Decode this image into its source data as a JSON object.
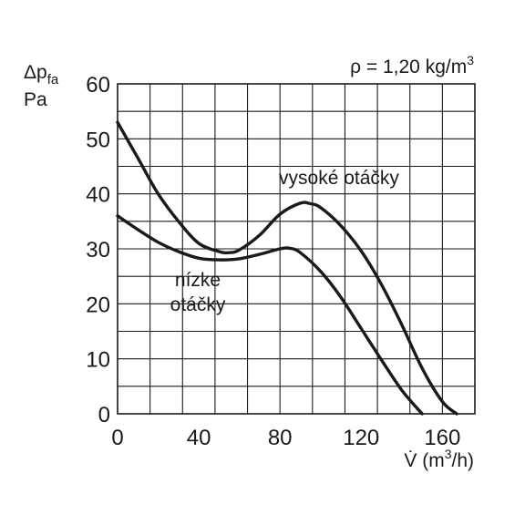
{
  "chart_data": {
    "type": "line",
    "ylabel_top": "Δp",
    "ylabel_sub": "fa",
    "ylabel_unit": "Pa",
    "xlabel_main": "V̇ (m",
    "xlabel_sup": "3",
    "xlabel_end": "/h)",
    "density_main": "ρ = 1,20 kg/m",
    "density_sup": "3",
    "xlim": [
      0,
      176
    ],
    "ylim": [
      0,
      60
    ],
    "x_ticks": [
      0,
      40,
      80,
      120,
      160
    ],
    "y_ticks": [
      0,
      10,
      20,
      30,
      40,
      50,
      60
    ],
    "x_tick_labels": [
      "0",
      "40",
      "80",
      "120",
      "160"
    ],
    "y_tick_labels": [
      "0",
      "10",
      "20",
      "30",
      "40",
      "50",
      "60"
    ],
    "x_grid_step": 16,
    "y_grid_step": 5,
    "grid": true,
    "series": [
      {
        "id": "high",
        "label_lines": [
          "vysoké otáčky"
        ],
        "x": [
          0,
          10,
          20,
          30,
          40,
          50,
          55,
          60,
          70,
          80,
          90,
          95,
          100,
          110,
          120,
          130,
          140,
          150,
          160,
          167
        ],
        "y": [
          53,
          46.5,
          40,
          35,
          31,
          29.5,
          29.3,
          29.8,
          32.5,
          36.3,
          38.3,
          38.2,
          37.5,
          34.2,
          29.6,
          23.5,
          16.2,
          8.3,
          2.2,
          0
        ]
      },
      {
        "id": "low",
        "label_lines": [
          "nízke",
          "otáčky"
        ],
        "x": [
          0,
          10,
          20,
          30,
          40,
          50,
          60,
          70,
          80,
          85,
          90,
          100,
          110,
          120,
          130,
          140,
          150
        ],
        "y": [
          36,
          33.5,
          31.2,
          29.5,
          28.3,
          28,
          28.2,
          29,
          30,
          30.1,
          29.3,
          25.9,
          21.2,
          15.5,
          9.8,
          4.3,
          0
        ]
      }
    ]
  }
}
